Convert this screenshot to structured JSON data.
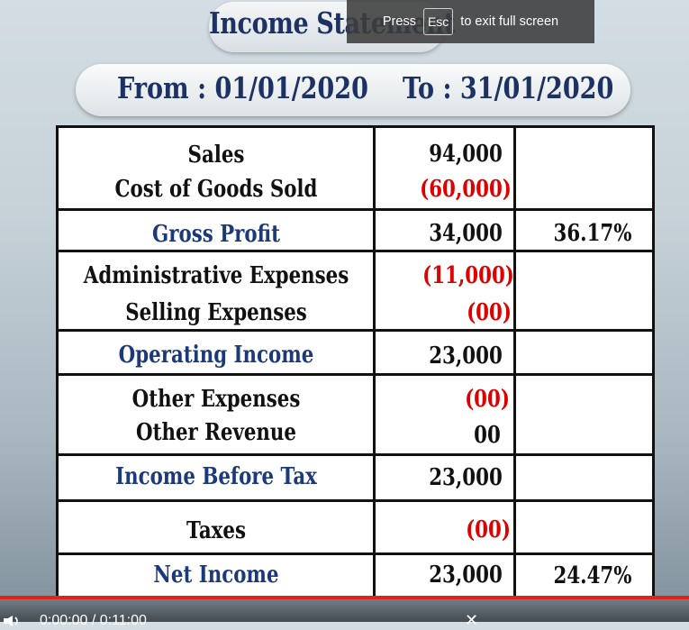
{
  "title": "Income Statement",
  "fullscreen_toast": {
    "press": "Press",
    "key": "Esc",
    "suffix": "to exit full screen"
  },
  "period": {
    "from": "From : 01/01/2020",
    "to": "To : 31/01/2020"
  },
  "statement": {
    "sales": {
      "label": "Sales",
      "amount": "94,000"
    },
    "cogs": {
      "label": "Cost of Goods Sold",
      "amount": "(60,000)"
    },
    "gross_profit": {
      "label": "Gross Profit",
      "amount": "34,000",
      "percent": "36.17%"
    },
    "admin": {
      "label": "Administrative Expenses",
      "amount": "(11,000)"
    },
    "selling": {
      "label": "Selling Expenses",
      "amount": "(00)"
    },
    "operating_income": {
      "label": "Operating Income",
      "amount": "23,000"
    },
    "other_expenses": {
      "label": "Other Expenses",
      "amount": "(00)"
    },
    "other_revenue": {
      "label": "Other Revenue",
      "amount": "00"
    },
    "income_before_tax": {
      "label": "Income Before Tax",
      "amount": "23,000"
    },
    "taxes": {
      "label": "Taxes",
      "amount": "(00)"
    },
    "net_income": {
      "label": "Net Income",
      "amount": "23,000",
      "percent": "24.47%"
    }
  },
  "player": {
    "time": "0:00:00 / 0:11:00",
    "progress": 1.0
  },
  "colors": {
    "heading": "#1d3263",
    "key_label": "#1d3a78",
    "negative": "#dd0000",
    "progress": "#e2231a"
  }
}
